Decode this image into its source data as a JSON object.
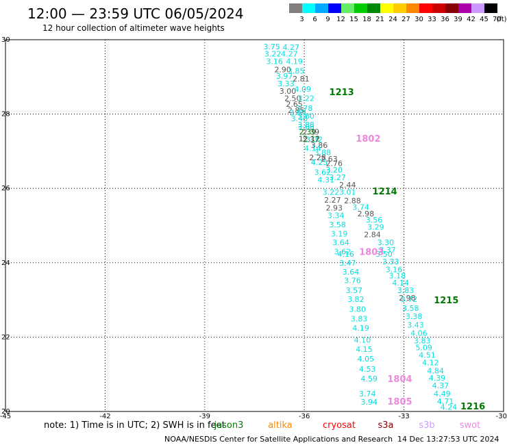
{
  "title": "12:00 — 23:59 UTC 06/05/2024",
  "subtitle": "12 hour collection of altimeter wave heights",
  "legend": {
    "unit": "(ft)",
    "bins": [
      {
        "label": "3",
        "color": "#808080"
      },
      {
        "label": "6",
        "color": "#00ffff"
      },
      {
        "label": "9",
        "color": "#00aaff"
      },
      {
        "label": "12",
        "color": "#0000ff"
      },
      {
        "label": "15",
        "color": "#66ee66"
      },
      {
        "label": "18",
        "color": "#00cc00"
      },
      {
        "label": "21",
        "color": "#008800"
      },
      {
        "label": "24",
        "color": "#ffff00"
      },
      {
        "label": "27",
        "color": "#ffcc00"
      },
      {
        "label": "30",
        "color": "#ff8800"
      },
      {
        "label": "33",
        "color": "#ff0000"
      },
      {
        "label": "36",
        "color": "#cc0000"
      },
      {
        "label": "39",
        "color": "#880000"
      },
      {
        "label": "42",
        "color": "#aa00aa"
      },
      {
        "label": "45",
        "color": "#cc99ff"
      },
      {
        "label": "70",
        "color": "#000000"
      }
    ]
  },
  "chart_data": {
    "type": "scatter",
    "xlim": [
      -45,
      -30
    ],
    "ylim": [
      20,
      30
    ],
    "x_ticks": [
      "-45",
      "-42",
      "-39",
      "-36",
      "-33",
      "-30"
    ],
    "y_ticks": [
      "20",
      "22",
      "24",
      "26",
      "28",
      "30"
    ],
    "grid": true,
    "colors": {
      "cyan": "#00e0e0",
      "gray": "#555555",
      "green": "#007700",
      "pink": "#ee88dd"
    },
    "points": [
      {
        "x": -36.98,
        "y": 29.82,
        "t": "3.75",
        "c": "cyan"
      },
      {
        "x": -36.4,
        "y": 29.8,
        "t": "4.27",
        "c": "cyan"
      },
      {
        "x": -36.95,
        "y": 29.62,
        "t": "3.22",
        "c": "cyan"
      },
      {
        "x": -36.45,
        "y": 29.62,
        "t": "4.27",
        "c": "cyan"
      },
      {
        "x": -36.9,
        "y": 29.42,
        "t": "3.16",
        "c": "cyan"
      },
      {
        "x": -36.3,
        "y": 29.42,
        "t": "4.19",
        "c": "cyan"
      },
      {
        "x": -36.65,
        "y": 29.2,
        "t": "2.90",
        "c": "gray"
      },
      {
        "x": -36.25,
        "y": 29.16,
        "t": "3.85",
        "c": "cyan"
      },
      {
        "x": -36.6,
        "y": 29.02,
        "t": "3.97",
        "c": "cyan"
      },
      {
        "x": -36.1,
        "y": 28.95,
        "t": "2.81",
        "c": "gray"
      },
      {
        "x": -36.55,
        "y": 28.82,
        "t": "3.33",
        "c": "cyan"
      },
      {
        "x": -36.5,
        "y": 28.62,
        "t": "3.00",
        "c": "gray"
      },
      {
        "x": -36.05,
        "y": 28.67,
        "t": "4.09",
        "c": "cyan"
      },
      {
        "x": -36.35,
        "y": 28.43,
        "t": "2.50",
        "c": "gray"
      },
      {
        "x": -35.95,
        "y": 28.43,
        "t": "3.22",
        "c": "cyan"
      },
      {
        "x": -36.3,
        "y": 28.27,
        "t": "2.65",
        "c": "gray"
      },
      {
        "x": -36.0,
        "y": 28.16,
        "t": "3.78",
        "c": "cyan"
      },
      {
        "x": -36.25,
        "y": 28.1,
        "t": "2.85",
        "c": "gray"
      },
      {
        "x": -36.2,
        "y": 28.04,
        "t": "3.89",
        "c": "cyan"
      },
      {
        "x": -35.95,
        "y": 27.95,
        "t": "3.80",
        "c": "cyan"
      },
      {
        "x": -36.15,
        "y": 27.88,
        "t": "3.48",
        "c": "cyan"
      },
      {
        "x": -35.95,
        "y": 27.72,
        "t": "3.88",
        "c": "cyan"
      },
      {
        "x": -35.95,
        "y": 27.66,
        "t": "3.68",
        "c": "cyan"
      },
      {
        "x": -35.8,
        "y": 27.52,
        "t": "2.39",
        "c": "gray"
      },
      {
        "x": -35.9,
        "y": 27.52,
        "t": "2.39",
        "c": "green"
      },
      {
        "x": -35.85,
        "y": 27.34,
        "t": "12.12",
        "c": "green"
      },
      {
        "x": -35.7,
        "y": 27.32,
        "t": "3.32",
        "c": "cyan"
      },
      {
        "x": -35.8,
        "y": 27.32,
        "t": "2.37",
        "c": "gray"
      },
      {
        "x": -35.55,
        "y": 27.16,
        "t": "3.86",
        "c": "gray"
      },
      {
        "x": -35.75,
        "y": 27.08,
        "t": "4.14",
        "c": "cyan"
      },
      {
        "x": -35.45,
        "y": 26.97,
        "t": "3.88",
        "c": "cyan"
      },
      {
        "x": -35.6,
        "y": 26.83,
        "t": "2.28",
        "c": "gray"
      },
      {
        "x": -35.25,
        "y": 26.8,
        "t": "2.63",
        "c": "gray"
      },
      {
        "x": -35.55,
        "y": 26.7,
        "t": "4.25",
        "c": "cyan"
      },
      {
        "x": -35.1,
        "y": 26.68,
        "t": "2.76",
        "c": "gray"
      },
      {
        "x": -35.1,
        "y": 26.5,
        "t": "3.20",
        "c": "cyan"
      },
      {
        "x": -35.45,
        "y": 26.44,
        "t": "3.62",
        "c": "cyan"
      },
      {
        "x": -35.0,
        "y": 26.3,
        "t": "3.27",
        "c": "cyan"
      },
      {
        "x": -35.35,
        "y": 26.23,
        "t": "4.31",
        "c": "cyan"
      },
      {
        "x": -34.7,
        "y": 26.1,
        "t": "2.44",
        "c": "gray"
      },
      {
        "x": -35.2,
        "y": 25.9,
        "t": "3.22",
        "c": "cyan"
      },
      {
        "x": -34.7,
        "y": 25.9,
        "t": "3.01",
        "c": "cyan"
      },
      {
        "x": -35.15,
        "y": 25.69,
        "t": "2.27",
        "c": "gray"
      },
      {
        "x": -34.55,
        "y": 25.67,
        "t": "2.88",
        "c": "gray"
      },
      {
        "x": -35.1,
        "y": 25.48,
        "t": "2.93",
        "c": "gray"
      },
      {
        "x": -34.3,
        "y": 25.5,
        "t": "3.74",
        "c": "cyan"
      },
      {
        "x": -34.15,
        "y": 25.32,
        "t": "2.98",
        "c": "gray"
      },
      {
        "x": -35.05,
        "y": 25.28,
        "t": "3.34",
        "c": "cyan"
      },
      {
        "x": -33.9,
        "y": 25.16,
        "t": "3.56",
        "c": "cyan"
      },
      {
        "x": -35.0,
        "y": 25.03,
        "t": "3.58",
        "c": "cyan"
      },
      {
        "x": -33.85,
        "y": 24.96,
        "t": "3.29",
        "c": "cyan"
      },
      {
        "x": -34.95,
        "y": 24.78,
        "t": "3.19",
        "c": "cyan"
      },
      {
        "x": -33.95,
        "y": 24.76,
        "t": "2.84",
        "c": "gray"
      },
      {
        "x": -34.9,
        "y": 24.55,
        "t": "3.64",
        "c": "cyan"
      },
      {
        "x": -33.55,
        "y": 24.55,
        "t": "3.30",
        "c": "cyan"
      },
      {
        "x": -33.5,
        "y": 24.35,
        "t": "3.37",
        "c": "cyan"
      },
      {
        "x": -34.85,
        "y": 24.3,
        "t": "3.62",
        "c": "cyan"
      },
      {
        "x": -34.75,
        "y": 24.24,
        "t": "4.16",
        "c": "cyan"
      },
      {
        "x": -33.6,
        "y": 24.24,
        "t": "3.50",
        "c": "cyan"
      },
      {
        "x": -33.4,
        "y": 24.03,
        "t": "3.33",
        "c": "cyan"
      },
      {
        "x": -34.7,
        "y": 24.0,
        "t": "3.47",
        "c": "cyan"
      },
      {
        "x": -33.3,
        "y": 23.82,
        "t": "3.16",
        "c": "cyan"
      },
      {
        "x": -34.6,
        "y": 23.76,
        "t": "3.64",
        "c": "cyan"
      },
      {
        "x": -33.2,
        "y": 23.66,
        "t": "3.18",
        "c": "cyan"
      },
      {
        "x": -34.55,
        "y": 23.53,
        "t": "3.76",
        "c": "cyan"
      },
      {
        "x": -33.1,
        "y": 23.46,
        "t": "4.14",
        "c": "cyan"
      },
      {
        "x": -34.5,
        "y": 23.26,
        "t": "3.57",
        "c": "cyan"
      },
      {
        "x": -32.95,
        "y": 23.26,
        "t": "3.83",
        "c": "cyan"
      },
      {
        "x": -32.9,
        "y": 23.06,
        "t": "2.98",
        "c": "gray"
      },
      {
        "x": -32.85,
        "y": 23.02,
        "t": "3.72",
        "c": "cyan"
      },
      {
        "x": -34.45,
        "y": 23.02,
        "t": "3.82",
        "c": "cyan"
      },
      {
        "x": -32.8,
        "y": 22.78,
        "t": "3.58",
        "c": "cyan"
      },
      {
        "x": -34.4,
        "y": 22.75,
        "t": "3.80",
        "c": "cyan"
      },
      {
        "x": -32.7,
        "y": 22.56,
        "t": "3.38",
        "c": "cyan"
      },
      {
        "x": -34.35,
        "y": 22.5,
        "t": "3.83",
        "c": "cyan"
      },
      {
        "x": -32.65,
        "y": 22.33,
        "t": "3.43",
        "c": "cyan"
      },
      {
        "x": -34.3,
        "y": 22.25,
        "t": "4.19",
        "c": "cyan"
      },
      {
        "x": -32.55,
        "y": 22.11,
        "t": "4.06",
        "c": "cyan"
      },
      {
        "x": -32.45,
        "y": 21.91,
        "t": "3.83",
        "c": "cyan"
      },
      {
        "x": -34.25,
        "y": 21.92,
        "t": "4.10",
        "c": "cyan"
      },
      {
        "x": -32.4,
        "y": 21.72,
        "t": "5.09",
        "c": "cyan"
      },
      {
        "x": -34.2,
        "y": 21.68,
        "t": "4.15",
        "c": "cyan"
      },
      {
        "x": -32.3,
        "y": 21.52,
        "t": "4.51",
        "c": "cyan"
      },
      {
        "x": -32.2,
        "y": 21.32,
        "t": "4.12",
        "c": "cyan"
      },
      {
        "x": -34.15,
        "y": 21.42,
        "t": "4.05",
        "c": "cyan"
      },
      {
        "x": -32.05,
        "y": 21.1,
        "t": "4.84",
        "c": "cyan"
      },
      {
        "x": -34.1,
        "y": 21.14,
        "t": "4.53",
        "c": "cyan"
      },
      {
        "x": -32.0,
        "y": 20.9,
        "t": "4.39",
        "c": "cyan"
      },
      {
        "x": -34.05,
        "y": 20.88,
        "t": "4.59",
        "c": "cyan"
      },
      {
        "x": -31.9,
        "y": 20.7,
        "t": "4.37",
        "c": "cyan"
      },
      {
        "x": -31.85,
        "y": 20.48,
        "t": "4.49",
        "c": "cyan"
      },
      {
        "x": -34.1,
        "y": 20.48,
        "t": "3.74",
        "c": "cyan"
      },
      {
        "x": -31.75,
        "y": 20.28,
        "t": "4.71",
        "c": "cyan"
      },
      {
        "x": -34.05,
        "y": 20.26,
        "t": "3.94",
        "c": "cyan"
      },
      {
        "x": -31.65,
        "y": 20.12,
        "t": "4.24",
        "c": "cyan"
      }
    ],
    "time_labels": [
      {
        "x": -35.25,
        "y": 28.6,
        "t": "1213",
        "c": "green"
      },
      {
        "x": -34.45,
        "y": 27.35,
        "t": "1802",
        "c": "pink"
      },
      {
        "x": -33.95,
        "y": 25.93,
        "t": "1214",
        "c": "green"
      },
      {
        "x": -34.35,
        "y": 24.3,
        "t": "1803",
        "c": "pink"
      },
      {
        "x": -32.1,
        "y": 23.0,
        "t": "1215",
        "c": "green"
      },
      {
        "x": -33.5,
        "y": 20.88,
        "t": "1804",
        "c": "pink"
      },
      {
        "x": -33.5,
        "y": 20.28,
        "t": "1805",
        "c": "pink"
      },
      {
        "x": -31.3,
        "y": 20.15,
        "t": "1216",
        "c": "green"
      }
    ]
  },
  "footer": {
    "note": "note:  1) Time is in UTC; 2) SWH is in feet",
    "satellites": [
      {
        "name": "jason3",
        "color": "#007700"
      },
      {
        "name": "altika",
        "color": "#ff8800"
      },
      {
        "name": "cryosat",
        "color": "#ff0000"
      },
      {
        "name": "s3a",
        "color": "#880000"
      },
      {
        "name": "s3b",
        "color": "#cc99ff"
      },
      {
        "name": "swot",
        "color": "#ee88dd"
      }
    ],
    "credit": "NOAA/NESDIS Center for Satellite Applications and Research",
    "timestamp": "14 Dec 13:27:53 UTC 2024"
  }
}
